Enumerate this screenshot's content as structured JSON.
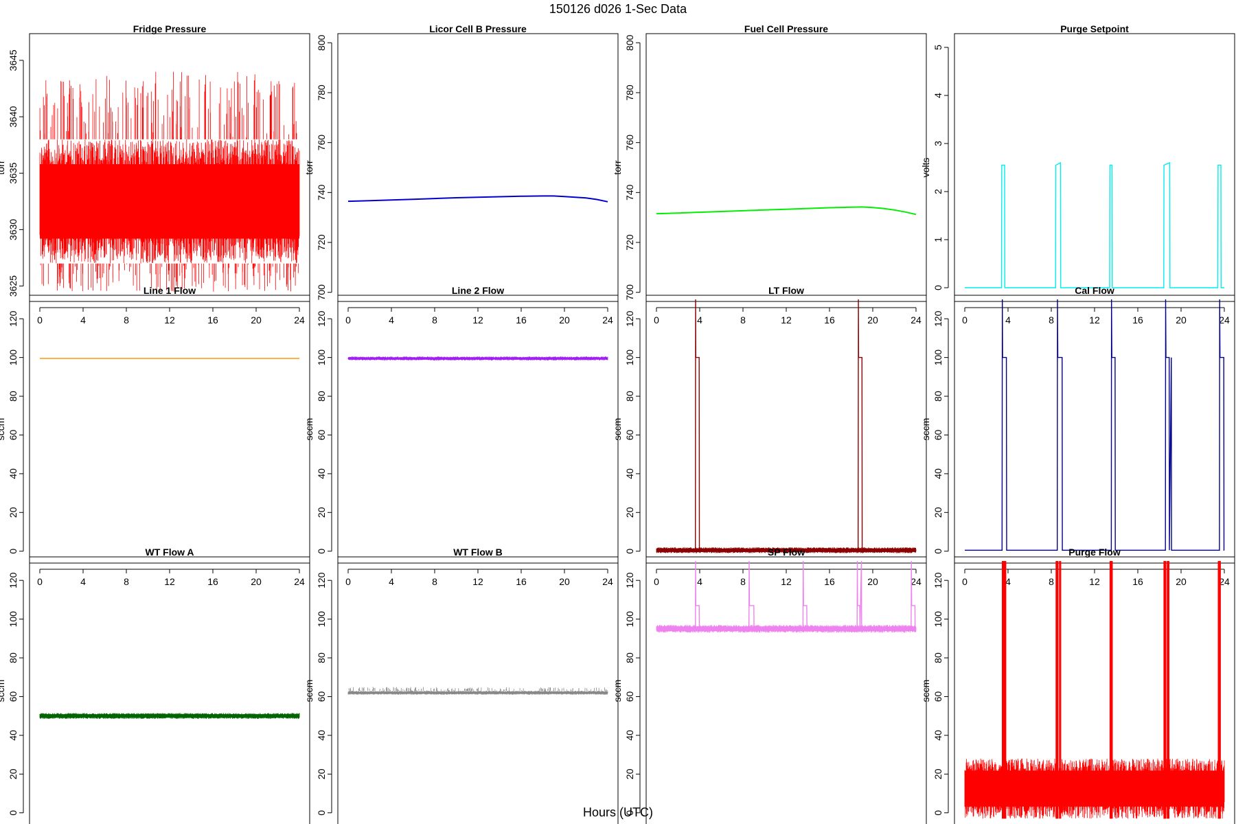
{
  "title": "150126   d026   1-Sec Data",
  "xlabel": "Hours (UTC)",
  "chart_data": [
    {
      "type": "line",
      "title": "Fridge Pressure",
      "ylabel": "torr",
      "color": "#ff0000",
      "xlim": [
        0,
        24
      ],
      "ylim": [
        3624,
        3647
      ],
      "xticks": [
        0,
        4,
        8,
        12,
        16,
        20,
        24
      ],
      "yticks": [
        3625,
        3630,
        3635,
        3640,
        3645
      ],
      "series": [
        {
          "x": [
            0,
            24
          ],
          "band_low": [
            3627,
            3627
          ],
          "band_high": [
            3638,
            3638
          ],
          "spike_high": [
            3644,
            3646.5
          ],
          "spike_low": [
            3624.5,
            3624.5
          ]
        }
      ]
    },
    {
      "type": "line",
      "title": "Licor Cell B Pressure",
      "ylabel": "torr",
      "color": "#0000cc",
      "xlim": [
        0,
        24
      ],
      "ylim": [
        698,
        802
      ],
      "xticks": [
        0,
        4,
        8,
        12,
        16,
        20,
        24
      ],
      "yticks": [
        700,
        720,
        740,
        760,
        780,
        800
      ],
      "series": [
        {
          "x": [
            0,
            2,
            4,
            6,
            8,
            10,
            12,
            14,
            16,
            18,
            19,
            20,
            21,
            22,
            23,
            24
          ],
          "y": [
            736.5,
            736.7,
            737,
            737.3,
            737.6,
            737.9,
            738.1,
            738.3,
            738.5,
            738.6,
            738.6,
            738.4,
            738.1,
            737.8,
            737.2,
            736.3
          ]
        }
      ]
    },
    {
      "type": "line",
      "title": "Fuel Cell Pressure",
      "ylabel": "torr",
      "color": "#00ee00",
      "xlim": [
        0,
        24
      ],
      "ylim": [
        698,
        802
      ],
      "xticks": [
        0,
        4,
        8,
        12,
        16,
        20,
        24
      ],
      "yticks": [
        700,
        720,
        740,
        760,
        780,
        800
      ],
      "series": [
        {
          "x": [
            0,
            2,
            4,
            6,
            8,
            10,
            12,
            14,
            16,
            18,
            19,
            20,
            21,
            22,
            23,
            24
          ],
          "y": [
            731.5,
            731.8,
            732.1,
            732.4,
            732.7,
            733,
            733.3,
            733.6,
            733.9,
            734.1,
            734.2,
            734,
            733.6,
            733,
            732.2,
            731.2
          ]
        }
      ]
    },
    {
      "type": "line",
      "title": "Purge Setpoint",
      "ylabel": "volts",
      "color": "#00eeee",
      "xlim": [
        0,
        24
      ],
      "ylim": [
        -0.2,
        5.2
      ],
      "xticks": [
        0,
        4,
        8,
        12,
        16,
        20,
        24
      ],
      "yticks": [
        0,
        1,
        2,
        3,
        4,
        5
      ],
      "series": [
        {
          "x": [
            0,
            3.4,
            3.42,
            3.68,
            3.7,
            8.4,
            8.42,
            8.85,
            8.87,
            13.4,
            13.42,
            13.62,
            13.64,
            18.4,
            18.42,
            18.95,
            18.97,
            23.4,
            23.42,
            23.68,
            23.7,
            24
          ],
          "y": [
            0,
            0,
            2.55,
            2.55,
            0,
            0,
            2.55,
            2.6,
            0,
            0,
            2.55,
            2.55,
            0,
            0,
            2.55,
            2.6,
            0,
            0,
            2.55,
            2.55,
            0,
            0
          ]
        }
      ]
    },
    {
      "type": "line",
      "title": "Line 1 Flow",
      "ylabel": "sccm",
      "color": "#ff9900",
      "xlim": [
        0,
        24
      ],
      "ylim": [
        -4,
        130
      ],
      "xticks": [
        0,
        4,
        8,
        12,
        16,
        20,
        24
      ],
      "yticks": [
        0,
        20,
        40,
        60,
        80,
        100,
        120
      ],
      "series": [
        {
          "x": [
            0,
            24
          ],
          "y": [
            99.5,
            99.5
          ]
        }
      ]
    },
    {
      "type": "line",
      "title": "Line 2 Flow",
      "ylabel": "sccm",
      "color": "#a020f0",
      "xlim": [
        0,
        24
      ],
      "ylim": [
        -4,
        130
      ],
      "xticks": [
        0,
        4,
        8,
        12,
        16,
        20,
        24
      ],
      "yticks": [
        0,
        20,
        40,
        60,
        80,
        100,
        120
      ],
      "series": [
        {
          "x": [
            0,
            24
          ],
          "band_low": [
            98.5,
            98.5
          ],
          "band_high": [
            100.5,
            100.5
          ]
        }
      ]
    },
    {
      "type": "line",
      "title": "LT Flow",
      "ylabel": "sccm",
      "color": "#8b0000",
      "xlim": [
        0,
        24
      ],
      "ylim": [
        -4,
        130
      ],
      "xticks": [
        0,
        4,
        8,
        12,
        16,
        20,
        24
      ],
      "yticks": [
        0,
        20,
        40,
        60,
        80,
        100,
        120
      ],
      "series": [
        {
          "x": [
            0,
            3.6,
            3.62,
            3.64,
            3.95,
            3.97,
            18.65,
            18.67,
            18.69,
            19,
            19.02,
            24
          ],
          "y": [
            0,
            0,
            130,
            100,
            100,
            0,
            0,
            130,
            100,
            100,
            0,
            0
          ],
          "band_low": [
            -1,
            -1
          ],
          "band_high": [
            2,
            2
          ]
        }
      ]
    },
    {
      "type": "line",
      "title": "Cal Flow",
      "ylabel": "sccm",
      "color": "#00008b",
      "xlim": [
        0,
        24
      ],
      "ylim": [
        -4,
        130
      ],
      "xticks": [
        0,
        4,
        8,
        12,
        16,
        20,
        24
      ],
      "yticks": [
        0,
        20,
        40,
        60,
        80,
        100,
        120
      ],
      "series": [
        {
          "x": [
            0,
            3.45,
            3.47,
            3.5,
            3.85,
            3.87,
            8.55,
            8.57,
            8.6,
            9.0,
            9.02,
            13.55,
            13.57,
            13.6,
            13.9,
            13.92,
            18.55,
            18.57,
            18.6,
            18.9,
            18.92,
            19.1,
            19.12,
            23.55,
            23.57,
            23.6,
            23.95,
            23.97,
            24
          ],
          "y": [
            0.5,
            0.5,
            130,
            100,
            100,
            0.5,
            0.5,
            130,
            100,
            100,
            0.5,
            0.5,
            130,
            100,
            100,
            0.5,
            0.5,
            130,
            100,
            100,
            0.5,
            100,
            0.5,
            0.5,
            130,
            100,
            100,
            0.5,
            0.5
          ]
        }
      ]
    },
    {
      "type": "line",
      "title": "WT Flow A",
      "ylabel": "sccm",
      "color": "#006400",
      "xlim": [
        0,
        24
      ],
      "ylim": [
        -4,
        130
      ],
      "xticks": [
        0,
        4,
        8,
        12,
        16,
        20,
        24
      ],
      "yticks": [
        0,
        20,
        40,
        60,
        80,
        100,
        120
      ],
      "series": [
        {
          "x": [
            0,
            24
          ],
          "band_low": [
            48.5,
            48.5
          ],
          "band_high": [
            51.5,
            51.5
          ]
        }
      ]
    },
    {
      "type": "line",
      "title": "WT Flow B",
      "ylabel": "sccm",
      "color": "#888888",
      "xlim": [
        0,
        24
      ],
      "ylim": [
        -4,
        130
      ],
      "xticks": [
        0,
        4,
        8,
        12,
        16,
        20,
        24
      ],
      "yticks": [
        0,
        20,
        40,
        60,
        80,
        100,
        120
      ],
      "series": [
        {
          "x": [
            0,
            24
          ],
          "band_low": [
            61,
            61
          ],
          "band_high": [
            63,
            63
          ],
          "spike_high": [
            65,
            65
          ]
        }
      ]
    },
    {
      "type": "line",
      "title": "SP Flow",
      "ylabel": "sccm",
      "color": "#ee82ee",
      "xlim": [
        0,
        24
      ],
      "ylim": [
        -4,
        130
      ],
      "xticks": [
        0,
        4,
        8,
        12,
        16,
        20,
        24
      ],
      "yticks": [
        0,
        20,
        40,
        60,
        80,
        100,
        120
      ],
      "series": [
        {
          "x": [
            0,
            3.6,
            3.62,
            3.64,
            3.95,
            3.97,
            8.55,
            8.57,
            8.6,
            9.0,
            9.02,
            13.55,
            13.57,
            13.6,
            13.9,
            13.92,
            18.55,
            18.57,
            18.6,
            18.8,
            18.82,
            18.95,
            18.97,
            23.55,
            23.57,
            23.6,
            23.9,
            23.92,
            24
          ],
          "y": [
            95,
            95,
            130,
            107,
            107,
            95,
            95,
            130,
            107,
            107,
            95,
            95,
            130,
            107,
            107,
            95,
            95,
            130,
            107,
            107,
            95,
            130,
            95,
            95,
            130,
            107,
            107,
            95,
            95
          ],
          "band_low": [
            93,
            93
          ],
          "band_high": [
            97,
            97
          ]
        }
      ]
    },
    {
      "type": "line",
      "title": "Purge Flow",
      "ylabel": "sccm",
      "color": "#ff0000",
      "xlim": [
        0,
        24
      ],
      "ylim": [
        -4,
        130
      ],
      "xticks": [
        0,
        4,
        8,
        12,
        16,
        20,
        24
      ],
      "yticks": [
        0,
        20,
        40,
        60,
        80,
        100,
        120
      ],
      "series": [
        {
          "x": [
            0,
            24
          ],
          "band_low": [
            -3,
            -3
          ],
          "band_high": [
            28,
            28
          ],
          "spikes": [
            [
              3.4,
              3.8
            ],
            [
              8.4,
              8.9
            ],
            [
              13.4,
              13.65
            ],
            [
              18.4,
              18.9
            ],
            [
              23.4,
              23.7
            ]
          ],
          "spike_y": [
            130,
            130,
            130,
            130,
            130
          ]
        }
      ]
    }
  ]
}
